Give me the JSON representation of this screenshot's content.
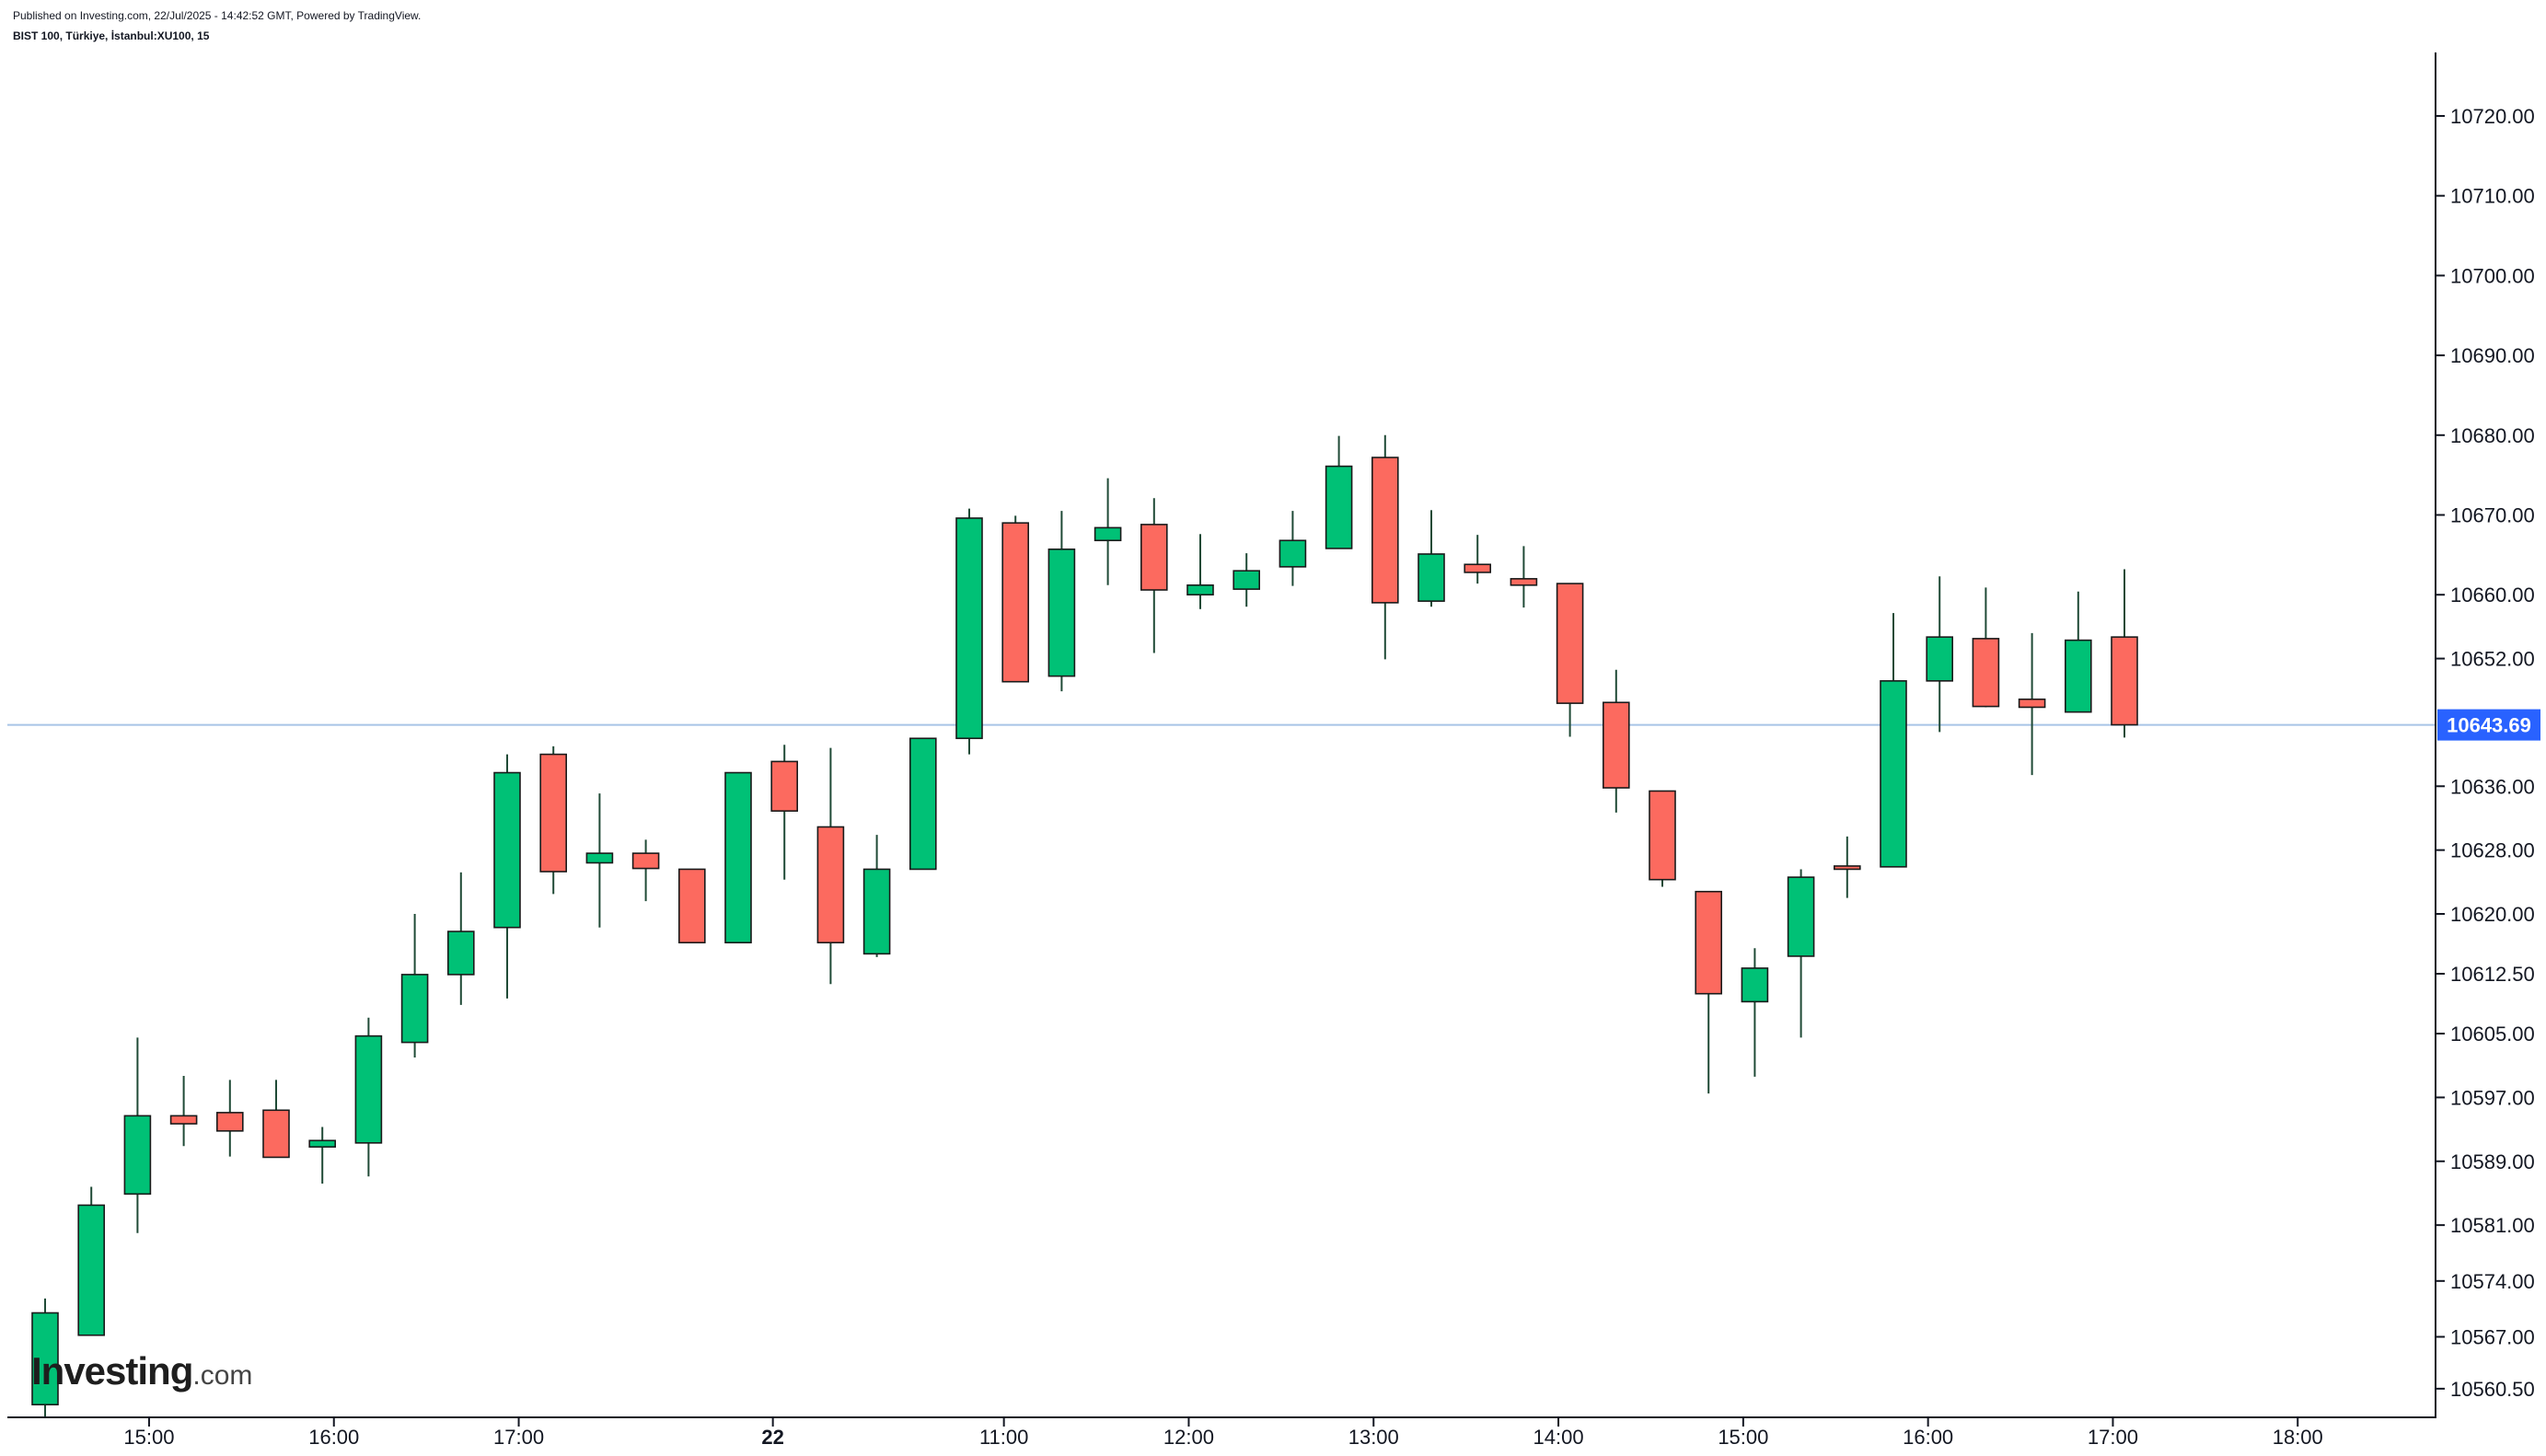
{
  "header": {
    "published": "Published on Investing.com, 22/Jul/2025 - 14:42:52 GMT, Powered by TradingView.",
    "symbol": "BIST 100, Türkiye, İstanbul:XU100, 15"
  },
  "logo": {
    "brand": "Investing",
    "tld": ".com"
  },
  "colors": {
    "up": "#00c176",
    "down": "#fc6a5f",
    "wick": "#1f4a36",
    "price_line": "#a8c4e6",
    "price_label_bg": "#2962ff"
  },
  "chart_data": {
    "type": "candlestick",
    "interval": "15",
    "x_ticks": [
      {
        "label": "15:00",
        "bar": 2.25
      },
      {
        "label": "16:00",
        "bar": 6.25
      },
      {
        "label": "17:00",
        "bar": 10.25
      },
      {
        "label": "22",
        "bar": 15.75,
        "bold": true
      },
      {
        "label": "11:00",
        "bar": 20.75
      },
      {
        "label": "12:00",
        "bar": 24.75
      },
      {
        "label": "13:00",
        "bar": 28.75
      },
      {
        "label": "14:00",
        "bar": 32.75
      },
      {
        "label": "15:00",
        "bar": 36.75
      },
      {
        "label": "16:00",
        "bar": 40.75
      },
      {
        "label": "17:00",
        "bar": 44.75
      },
      {
        "label": "18:00",
        "bar": 48.75
      }
    ],
    "y_ticks": [
      "10720.00",
      "10710.00",
      "10700.00",
      "10690.00",
      "10680.00",
      "10670.00",
      "10660.00",
      "10652.00",
      "10636.00",
      "10628.00",
      "10620.00",
      "10612.50",
      "10605.00",
      "10597.00",
      "10589.00",
      "10581.00",
      "10574.00",
      "10567.00",
      "10560.50"
    ],
    "current_price": "10643.69",
    "candles": [
      {
        "o": 10558.5,
        "h": 10571.8,
        "l": 10557.0,
        "c": 10570.0
      },
      {
        "o": 10567.2,
        "h": 10585.8,
        "l": 10567.2,
        "c": 10583.5
      },
      {
        "o": 10584.9,
        "h": 10604.5,
        "l": 10580.0,
        "c": 10594.7
      },
      {
        "o": 10594.7,
        "h": 10599.7,
        "l": 10590.9,
        "c": 10593.7
      },
      {
        "o": 10595.1,
        "h": 10599.2,
        "l": 10589.6,
        "c": 10592.8
      },
      {
        "o": 10595.4,
        "h": 10599.2,
        "l": 10589.5,
        "c": 10589.5
      },
      {
        "o": 10590.8,
        "h": 10593.3,
        "l": 10586.2,
        "c": 10591.6
      },
      {
        "o": 10591.3,
        "h": 10607.0,
        "l": 10587.1,
        "c": 10604.7
      },
      {
        "o": 10603.9,
        "h": 10620.0,
        "l": 10602.0,
        "c": 10612.4
      },
      {
        "o": 10612.4,
        "h": 10625.2,
        "l": 10608.6,
        "c": 10617.8
      },
      {
        "o": 10618.3,
        "h": 10640.0,
        "l": 10609.4,
        "c": 10637.7
      },
      {
        "o": 10640.0,
        "h": 10641.0,
        "l": 10622.5,
        "c": 10625.3
      },
      {
        "o": 10626.4,
        "h": 10635.1,
        "l": 10618.3,
        "c": 10627.6
      },
      {
        "o": 10627.6,
        "h": 10629.3,
        "l": 10621.6,
        "c": 10625.7
      },
      {
        "o": 10625.6,
        "h": 10625.6,
        "l": 10616.4,
        "c": 10616.4
      },
      {
        "o": 10616.4,
        "h": 10637.7,
        "l": 10616.4,
        "c": 10637.7
      },
      {
        "o": 10639.1,
        "h": 10641.2,
        "l": 10624.3,
        "c": 10632.9
      },
      {
        "o": 10630.9,
        "h": 10640.8,
        "l": 10611.2,
        "c": 10616.4
      },
      {
        "o": 10615.0,
        "h": 10629.9,
        "l": 10614.6,
        "c": 10625.6
      },
      {
        "o": 10625.6,
        "h": 10642.0,
        "l": 10625.6,
        "c": 10642.0
      },
      {
        "o": 10642.0,
        "h": 10670.8,
        "l": 10640.0,
        "c": 10669.6
      },
      {
        "o": 10669.0,
        "h": 10669.9,
        "l": 10649.1,
        "c": 10649.1
      },
      {
        "o": 10649.8,
        "h": 10670.5,
        "l": 10647.9,
        "c": 10665.7
      },
      {
        "o": 10666.8,
        "h": 10674.6,
        "l": 10661.2,
        "c": 10668.4
      },
      {
        "o": 10668.8,
        "h": 10672.1,
        "l": 10652.7,
        "c": 10660.6
      },
      {
        "o": 10660.0,
        "h": 10667.6,
        "l": 10658.2,
        "c": 10661.2
      },
      {
        "o": 10660.7,
        "h": 10665.2,
        "l": 10658.5,
        "c": 10663.0
      },
      {
        "o": 10663.5,
        "h": 10670.5,
        "l": 10661.1,
        "c": 10666.8
      },
      {
        "o": 10665.8,
        "h": 10679.9,
        "l": 10665.8,
        "c": 10676.1
      },
      {
        "o": 10677.2,
        "h": 10680.0,
        "l": 10651.9,
        "c": 10659.0
      },
      {
        "o": 10659.2,
        "h": 10670.6,
        "l": 10658.5,
        "c": 10665.1
      },
      {
        "o": 10663.8,
        "h": 10667.5,
        "l": 10661.4,
        "c": 10662.8
      },
      {
        "o": 10662.0,
        "h": 10666.1,
        "l": 10658.4,
        "c": 10661.2
      },
      {
        "o": 10661.4,
        "h": 10661.4,
        "l": 10642.2,
        "c": 10646.4
      },
      {
        "o": 10646.5,
        "h": 10650.6,
        "l": 10632.7,
        "c": 10635.8
      },
      {
        "o": 10635.4,
        "h": 10635.4,
        "l": 10623.4,
        "c": 10624.3
      },
      {
        "o": 10622.8,
        "h": 10622.8,
        "l": 10597.5,
        "c": 10610.0
      },
      {
        "o": 10609.0,
        "h": 10615.7,
        "l": 10599.6,
        "c": 10613.2
      },
      {
        "o": 10614.7,
        "h": 10625.6,
        "l": 10604.5,
        "c": 10624.6
      },
      {
        "o": 10626.0,
        "h": 10629.7,
        "l": 10622.0,
        "c": 10625.6
      },
      {
        "o": 10625.9,
        "h": 10657.7,
        "l": 10625.9,
        "c": 10649.2
      },
      {
        "o": 10649.2,
        "h": 10662.3,
        "l": 10642.8,
        "c": 10654.7
      },
      {
        "o": 10654.5,
        "h": 10660.9,
        "l": 10645.9,
        "c": 10646.0
      },
      {
        "o": 10646.9,
        "h": 10655.2,
        "l": 10637.4,
        "c": 10645.9
      },
      {
        "o": 10645.3,
        "h": 10660.4,
        "l": 10645.3,
        "c": 10654.3
      },
      {
        "o": 10654.7,
        "h": 10663.2,
        "l": 10642.1,
        "c": 10643.7
      }
    ]
  }
}
